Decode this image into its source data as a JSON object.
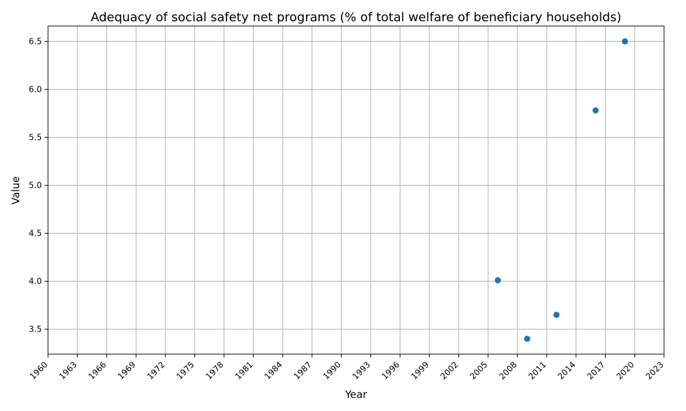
{
  "chart_data": {
    "type": "scatter",
    "title": "Adequacy of social safety net programs (% of total welfare of beneficiary households)",
    "xlabel": "Year",
    "ylabel": "Value",
    "xlim": [
      1960,
      2023
    ],
    "ylim": [
      3.24,
      6.66
    ],
    "xticks": [
      1960,
      1963,
      1966,
      1969,
      1972,
      1975,
      1978,
      1981,
      1984,
      1987,
      1990,
      1993,
      1996,
      1999,
      2002,
      2005,
      2008,
      2011,
      2014,
      2017,
      2020,
      2023
    ],
    "yticks": [
      3.5,
      4.0,
      4.5,
      5.0,
      5.5,
      6.0,
      6.5
    ],
    "ytick_labels": [
      "3.5",
      "4.0",
      "4.5",
      "5.0",
      "5.5",
      "6.0",
      "6.5"
    ],
    "grid": true,
    "series": [
      {
        "color": "#1f77b4",
        "x": [
          2006,
          2009,
          2012,
          2016,
          2019
        ],
        "y": [
          4.01,
          3.4,
          3.65,
          5.78,
          6.5
        ]
      }
    ]
  }
}
